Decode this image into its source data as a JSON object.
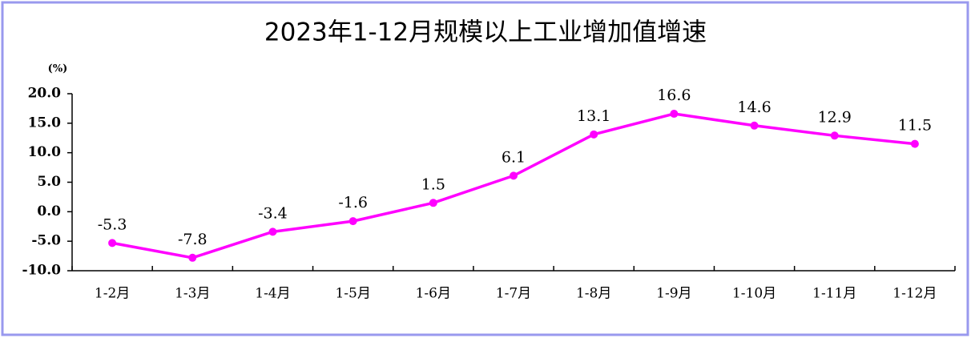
{
  "chart_data": {
    "type": "line",
    "title": "2023年1-12月规模以上工业增加值增速",
    "y_unit": "(%)",
    "categories": [
      "1-2月",
      "1-3月",
      "1-4月",
      "1-5月",
      "1-6月",
      "1-7月",
      "1-8月",
      "1-9月",
      "1-10月",
      "1-11月",
      "1-12月"
    ],
    "values": [
      -5.3,
      -7.8,
      -3.4,
      -1.6,
      1.5,
      6.1,
      13.1,
      16.6,
      14.6,
      12.9,
      11.5
    ],
    "color": "#ff00ff",
    "ylim": [
      -10,
      20
    ],
    "yticks": [
      {
        "value": -10,
        "label": "-10.0"
      },
      {
        "value": -5,
        "label": "-5.0"
      },
      {
        "value": 0,
        "label": "0.0"
      },
      {
        "value": 5,
        "label": "5.0"
      },
      {
        "value": 10,
        "label": "10.0"
      },
      {
        "value": 15,
        "label": "15.0"
      },
      {
        "value": 20,
        "label": "20.0"
      }
    ],
    "grid": false
  }
}
